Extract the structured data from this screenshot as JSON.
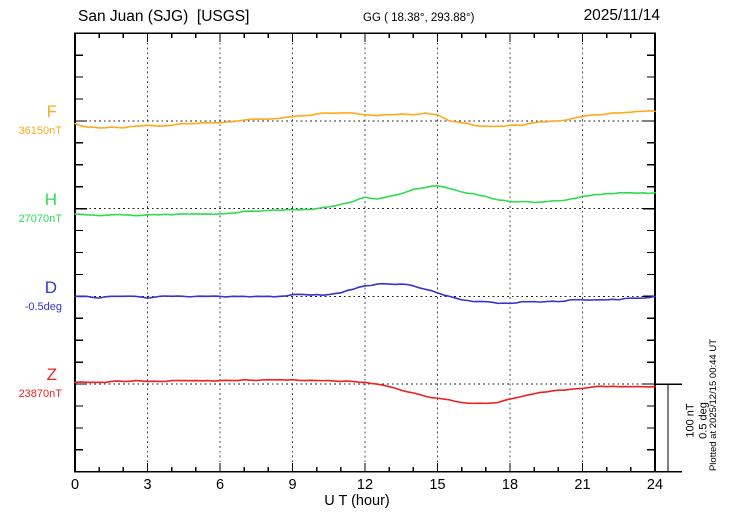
{
  "header": {
    "station_title": "San Juan (SJG)  [USGS]",
    "geographic_coords": "GG ( 18.38°, 293.88°)",
    "date": "2025/11/14"
  },
  "plotted_note": "Plotted at 2025/12/15 00:44 UT",
  "chart_data": {
    "type": "line",
    "title": "San Juan (SJG) [USGS] magnetogram for 2025/11/14",
    "xlabel": "U T (hour)",
    "x_range": [
      0,
      24
    ],
    "x_tick_labels": [
      "0",
      "3",
      "6",
      "9",
      "12",
      "15",
      "18",
      "21",
      "24"
    ],
    "x_step_hours": 0.5,
    "grid": {
      "vertical_dotted_every_hours": 3,
      "horizontal_dotted_at": "each series baseline"
    },
    "scale": {
      "nT_per_division": 100,
      "deg_per_division": 0.5,
      "bar_labels": [
        "100 nT",
        "0.5 deg"
      ]
    },
    "series": [
      {
        "name": "F",
        "unit": "nT",
        "baseline": 36150,
        "baseline_label": "36150nT",
        "color": "#FFAA1E",
        "delta_from_baseline": [
          -3,
          -7,
          -8,
          -7,
          -8,
          -6,
          -5,
          -6,
          -5,
          -3,
          -3,
          -2,
          -2,
          -1,
          1,
          2,
          2,
          3,
          5,
          6,
          8,
          9,
          9,
          9,
          7,
          6,
          7,
          8,
          7,
          9,
          7,
          0,
          -2,
          -5,
          -6,
          -6,
          -5,
          -5,
          -2,
          -1,
          0,
          2,
          5,
          7,
          8,
          9,
          10,
          11,
          11
        ]
      },
      {
        "name": "H",
        "unit": "nT",
        "baseline": 27070,
        "baseline_label": "27070nT",
        "color": "#2EDC4F",
        "delta_from_baseline": [
          -6,
          -7,
          -8,
          -7,
          -7,
          -8,
          -7,
          -7,
          -7,
          -6,
          -6,
          -6,
          -6,
          -5,
          -3,
          -3,
          -2,
          -2,
          -1,
          -1,
          0,
          2,
          5,
          8,
          13,
          11,
          14,
          17,
          22,
          24,
          26,
          23,
          19,
          17,
          14,
          10,
          8,
          8,
          7,
          8,
          9,
          11,
          14,
          16,
          17,
          18,
          18,
          18,
          18
        ]
      },
      {
        "name": "D",
        "unit": "deg",
        "baseline": -0.5,
        "baseline_label": "-0.5deg",
        "color": "#3434CF",
        "delta_from_baseline": [
          0,
          0,
          -0.01,
          0,
          0,
          0,
          -0.01,
          0,
          0,
          0,
          0,
          0,
          0,
          0,
          0,
          0,
          0,
          0,
          0.01,
          0.01,
          0.01,
          0.01,
          0.02,
          0.04,
          0.06,
          0.07,
          0.07,
          0.07,
          0.06,
          0.04,
          0.02,
          0,
          -0.02,
          -0.03,
          -0.03,
          -0.04,
          -0.04,
          -0.03,
          -0.03,
          -0.03,
          -0.03,
          -0.02,
          -0.02,
          -0.02,
          -0.02,
          -0.02,
          -0.01,
          -0.01,
          0
        ]
      },
      {
        "name": "Z",
        "unit": "nT",
        "baseline": 23870,
        "baseline_label": "23870nT",
        "color": "#EE2020",
        "delta_from_baseline": [
          2,
          2,
          2,
          3,
          3,
          4,
          3,
          3,
          4,
          4,
          4,
          4,
          4,
          4,
          5,
          4,
          5,
          5,
          5,
          4,
          4,
          4,
          3,
          3,
          2,
          0,
          -3,
          -7,
          -10,
          -14,
          -16,
          -18,
          -21,
          -22,
          -22,
          -21,
          -17,
          -14,
          -11,
          -9,
          -7,
          -6,
          -5,
          -3,
          -3,
          -3,
          -3,
          -3,
          -3
        ]
      }
    ]
  }
}
